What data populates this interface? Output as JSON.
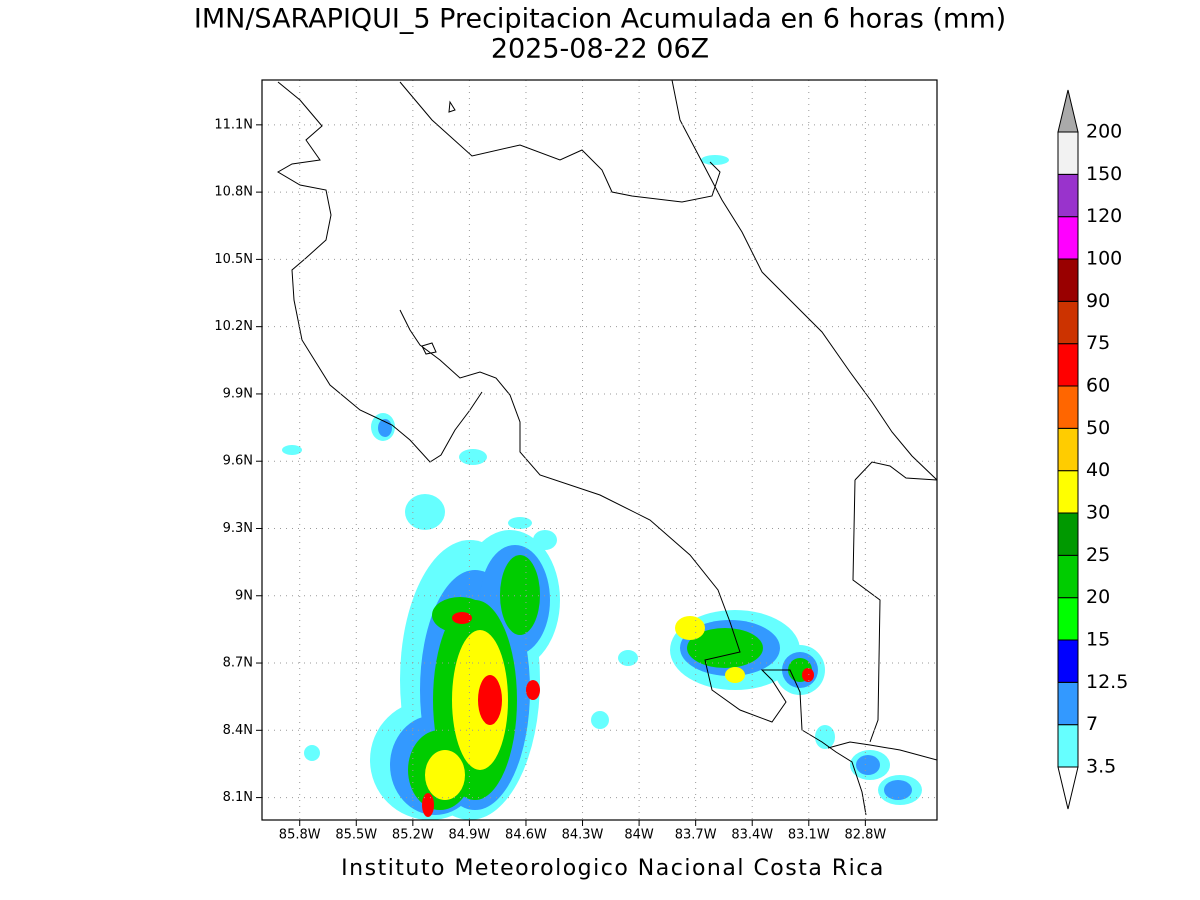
{
  "chart_data": {
    "type": "contour-map",
    "title": "IMN/SARAPIQUI_5 Precipitacion Acumulada en 6 horas (mm)",
    "subtitle": "2025-08-22 06Z",
    "credit": "Instituto Meteorologico Nacional Costa Rica",
    "xlim": [
      -86.0,
      -82.42
    ],
    "ylim": [
      8.0,
      11.3
    ],
    "xticks": [
      {
        "value": -85.8,
        "label": "85.8W"
      },
      {
        "value": -85.5,
        "label": "85.5W"
      },
      {
        "value": -85.2,
        "label": "85.2W"
      },
      {
        "value": -84.9,
        "label": "84.9W"
      },
      {
        "value": -84.6,
        "label": "84.6W"
      },
      {
        "value": -84.3,
        "label": "84.3W"
      },
      {
        "value": -84.0,
        "label": "84W"
      },
      {
        "value": -83.7,
        "label": "83.7W"
      },
      {
        "value": -83.4,
        "label": "83.4W"
      },
      {
        "value": -83.1,
        "label": "83.1W"
      },
      {
        "value": -82.8,
        "label": "82.8W"
      }
    ],
    "yticks": [
      {
        "value": 8.1,
        "label": "8.1N"
      },
      {
        "value": 8.4,
        "label": "8.4N"
      },
      {
        "value": 8.7,
        "label": "8.7N"
      },
      {
        "value": 9.0,
        "label": "9N"
      },
      {
        "value": 9.3,
        "label": "9.3N"
      },
      {
        "value": 9.6,
        "label": "9.6N"
      },
      {
        "value": 9.9,
        "label": "9.9N"
      },
      {
        "value": 10.2,
        "label": "10.2N"
      },
      {
        "value": 10.5,
        "label": "10.5N"
      },
      {
        "value": 10.8,
        "label": "10.8N"
      },
      {
        "value": 11.1,
        "label": "11.1N"
      }
    ],
    "grid": true,
    "colorbar": {
      "levels": [
        3.5,
        7,
        12.5,
        15,
        20,
        25,
        30,
        40,
        50,
        60,
        75,
        90,
        100,
        120,
        150,
        200
      ],
      "colors": [
        "#66ffff",
        "#3399ff",
        "#0000ff",
        "#00ff00",
        "#00cc00",
        "#009900",
        "#ffff00",
        "#ffcc00",
        "#ff6600",
        "#ff0000",
        "#cc3300",
        "#990000",
        "#ff00ff",
        "#9933cc",
        "#f2f2f2"
      ],
      "under_color": "#ffffff",
      "over_color": "#aaaaaa"
    }
  }
}
